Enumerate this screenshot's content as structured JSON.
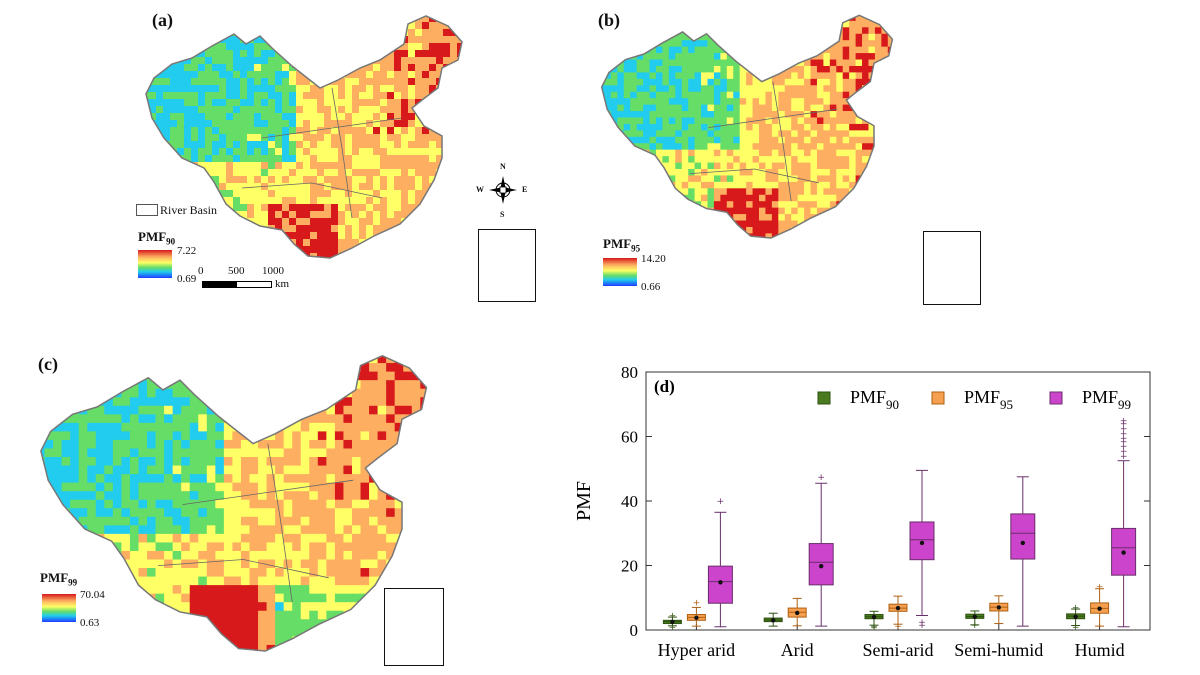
{
  "panels": [
    {
      "id": "a",
      "label": "(a)",
      "legend_title": "PMF",
      "legend_sub": "90",
      "max": "7.22",
      "min": "0.69"
    },
    {
      "id": "b",
      "label": "(b)",
      "legend_title": "PMF",
      "legend_sub": "95",
      "max": "14.20",
      "min": "0.66"
    },
    {
      "id": "c",
      "label": "(c)",
      "legend_title": "PMF",
      "legend_sub": "99",
      "max": "70.04",
      "min": "0.63"
    }
  ],
  "map_extras": {
    "river_basin_label": "River Basin",
    "scale_0": "0",
    "scale_500": "500",
    "scale_1000": "1000",
    "scale_unit": "km",
    "compass_n": "N",
    "compass_s": "S",
    "compass_e": "E",
    "compass_w": "W"
  },
  "colors": {
    "red": "#d7191c",
    "orange": "#fdae61",
    "yellow": "#ffff66",
    "green": "#66dd66",
    "cyan": "#22ccee",
    "blue": "#1e3cff"
  },
  "chart_data": {
    "type": "box",
    "panel_label": "(d)",
    "ylabel": "PMF",
    "ylim": [
      0,
      80
    ],
    "yticks": [
      0,
      20,
      40,
      60,
      80
    ],
    "categories": [
      "Hyper arid",
      "Arid",
      "Semi-arid",
      "Semi-humid",
      "Humid"
    ],
    "legend_position": "top",
    "series": [
      {
        "name": "PMF",
        "sub": "90",
        "color": "#4a7a1e",
        "stroke": "#2f5212",
        "boxes": [
          {
            "min": 1.3,
            "q1": 2.0,
            "median": 2.6,
            "q3": 3.0,
            "max": 4.0,
            "mean": 2.5,
            "outliers": [
              4.5,
              1.0
            ]
          },
          {
            "min": 1.2,
            "q1": 2.6,
            "median": 3.1,
            "q3": 3.7,
            "max": 5.2,
            "mean": 3.0,
            "outliers": []
          },
          {
            "min": 1.5,
            "q1": 3.5,
            "median": 4.1,
            "q3": 4.8,
            "max": 5.8,
            "mean": 4.0,
            "outliers": [
              1.2,
              0.8
            ]
          },
          {
            "min": 1.6,
            "q1": 3.6,
            "median": 4.2,
            "q3": 4.9,
            "max": 5.9,
            "mean": 4.1,
            "outliers": [
              1.5
            ]
          },
          {
            "min": 1.4,
            "q1": 3.5,
            "median": 4.3,
            "q3": 5.0,
            "max": 6.5,
            "mean": 4.1,
            "outliers": [
              1.0,
              7.0
            ]
          }
        ]
      },
      {
        "name": "PMF",
        "sub": "95",
        "color": "#f5a050",
        "stroke": "#b06010",
        "boxes": [
          {
            "min": 1.2,
            "q1": 3.0,
            "median": 3.9,
            "q3": 4.8,
            "max": 7.0,
            "mean": 3.8,
            "outliers": [
              8.5
            ]
          },
          {
            "min": 1.3,
            "q1": 4.0,
            "median": 5.5,
            "q3": 6.8,
            "max": 9.8,
            "mean": 5.3,
            "outliers": []
          },
          {
            "min": 1.8,
            "q1": 5.8,
            "median": 6.8,
            "q3": 8.0,
            "max": 10.5,
            "mean": 6.8,
            "outliers": [
              1.2
            ]
          },
          {
            "min": 2.0,
            "q1": 5.9,
            "median": 7.1,
            "q3": 8.3,
            "max": 10.6,
            "mean": 7.0,
            "outliers": []
          },
          {
            "min": 1.2,
            "q1": 5.2,
            "median": 6.7,
            "q3": 8.4,
            "max": 12.8,
            "mean": 6.6,
            "outliers": [
              13.5
            ]
          }
        ]
      },
      {
        "name": "PMF",
        "sub": "99",
        "color": "#cc44cc",
        "stroke": "#6a2f6a",
        "boxes": [
          {
            "min": 1.0,
            "q1": 8.3,
            "median": 15.0,
            "q3": 19.8,
            "max": 36.5,
            "mean": 14.8,
            "outliers": [
              40.0
            ]
          },
          {
            "min": 1.2,
            "q1": 14.0,
            "median": 21.0,
            "q3": 26.8,
            "max": 45.5,
            "mean": 19.8,
            "outliers": [
              47.5
            ]
          },
          {
            "min": 4.5,
            "q1": 21.8,
            "median": 28.0,
            "q3": 33.5,
            "max": 49.5,
            "mean": 27.0,
            "outliers": [
              1.5,
              2.5
            ]
          },
          {
            "min": 1.2,
            "q1": 22.0,
            "median": 30.0,
            "q3": 36.0,
            "max": 47.5,
            "mean": 27.0,
            "outliers": []
          },
          {
            "min": 1.0,
            "q1": 17.0,
            "median": 25.5,
            "q3": 31.5,
            "max": 52.5,
            "mean": 24.0,
            "outliers": [
              54,
              55.5,
              57,
              58.5,
              59.5,
              61,
              62.5,
              64,
              65
            ]
          }
        ]
      }
    ]
  }
}
